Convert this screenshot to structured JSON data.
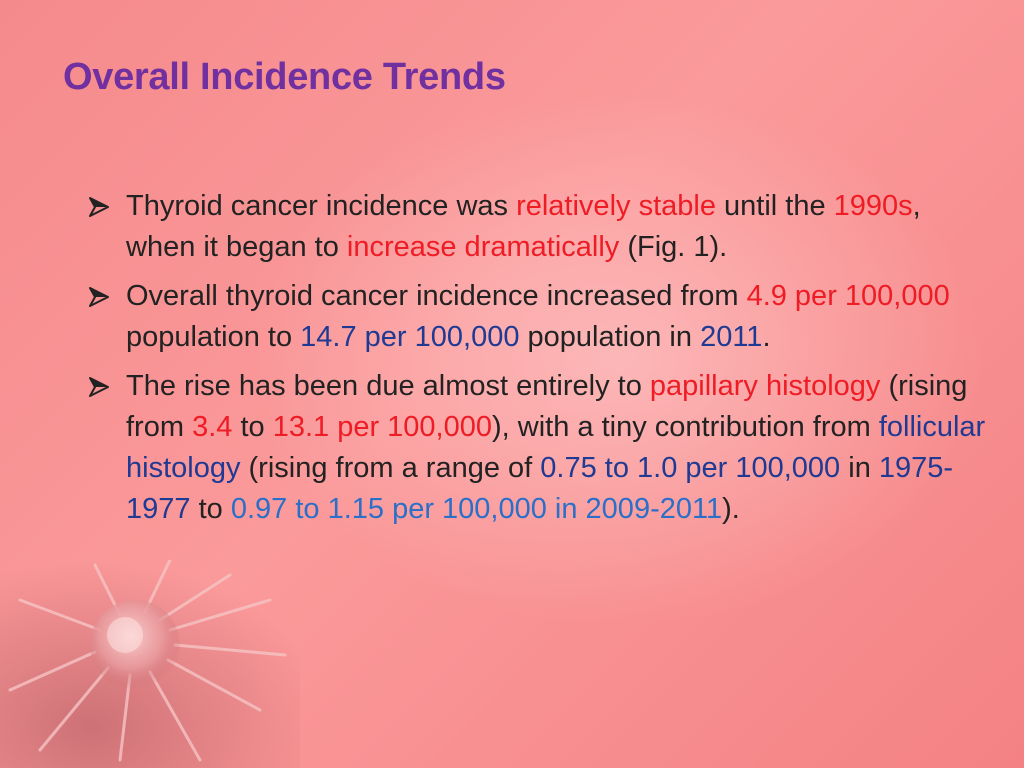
{
  "slide": {
    "title": "Overall Incidence Trends",
    "bullet_icon": "arrowhead-bullet-icon",
    "decoration_icon": "cancer-cell-icon",
    "colors": {
      "title": "#7030a0",
      "body": "#222222",
      "highlight_red": "#ee1c25",
      "highlight_navy": "#1f3a93",
      "highlight_blue": "#2b6fc9",
      "background": "#f8908f"
    },
    "bullets": [
      {
        "segments": [
          {
            "text": "Thyroid cancer incidence was ",
            "style": "plain"
          },
          {
            "text": "relatively stable",
            "style": "red"
          },
          {
            "text": " until the ",
            "style": "plain"
          },
          {
            "text": "1990s",
            "style": "red"
          },
          {
            "text": ", when it began to ",
            "style": "plain"
          },
          {
            "text": "increase dramatically",
            "style": "red"
          },
          {
            "text": " (Fig. 1).",
            "style": "plain"
          }
        ]
      },
      {
        "segments": [
          {
            "text": "Overall thyroid cancer incidence increased from ",
            "style": "plain"
          },
          {
            "text": "4.9 per 100,000",
            "style": "red"
          },
          {
            "text": " population to ",
            "style": "plain"
          },
          {
            "text": "14.7 per 100,000",
            "style": "navy"
          },
          {
            "text": " population in ",
            "style": "plain"
          },
          {
            "text": "2011",
            "style": "navy"
          },
          {
            "text": ".",
            "style": "plain"
          }
        ]
      },
      {
        "segments": [
          {
            "text": "The rise has been due almost entirely to ",
            "style": "plain"
          },
          {
            "text": "papillary histology",
            "style": "red"
          },
          {
            "text": " (rising from ",
            "style": "plain"
          },
          {
            "text": "3.4",
            "style": "red"
          },
          {
            "text": " to ",
            "style": "plain"
          },
          {
            "text": "13.1 per 100,000",
            "style": "red"
          },
          {
            "text": "), with a tiny contribution from ",
            "style": "plain"
          },
          {
            "text": "follicular histology",
            "style": "navy"
          },
          {
            "text": " (rising from a range of ",
            "style": "plain"
          },
          {
            "text": "0.75 to 1.0 per 100,000",
            "style": "navy"
          },
          {
            "text": " in ",
            "style": "plain"
          },
          {
            "text": "1975-1977",
            "style": "navy"
          },
          {
            "text": " to ",
            "style": "plain"
          },
          {
            "text": "0.97 to 1.15 per 100,000 in 2009-2011",
            "style": "blue"
          },
          {
            "text": ").",
            "style": "plain"
          }
        ]
      }
    ]
  }
}
